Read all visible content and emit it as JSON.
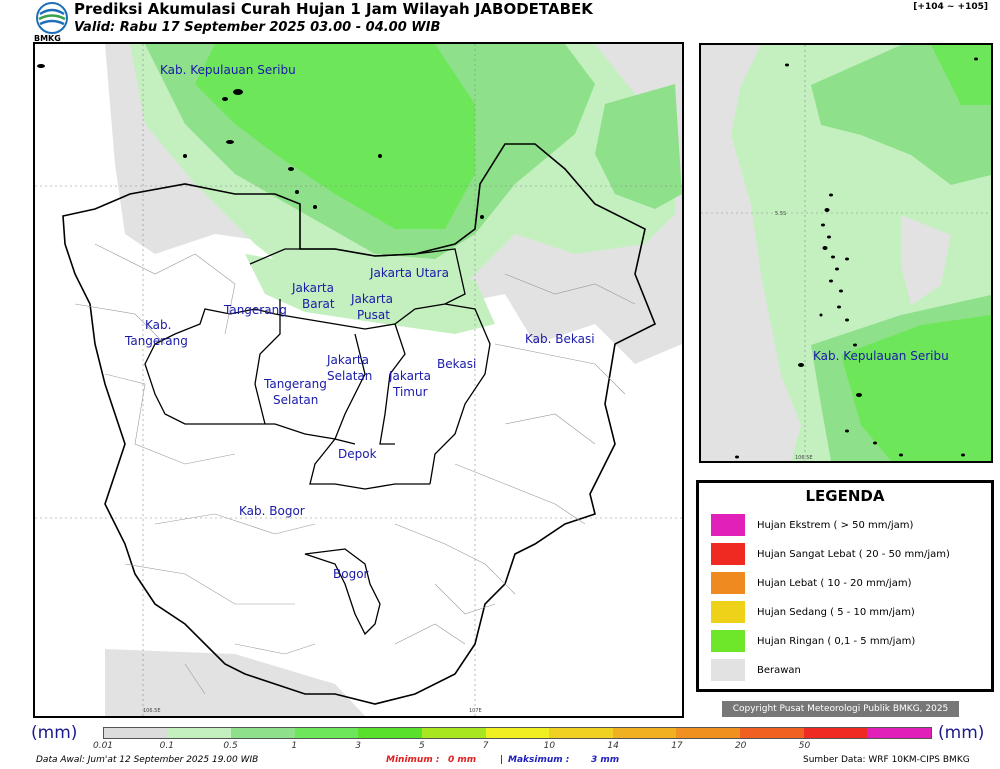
{
  "header": {
    "title": "Prediksi Akumulasi Curah Hujan 1 Jam Wilayah JABODETABEK",
    "subtitle": "Valid: Rabu 17 September 2025 03.00 - 04.00 WIB",
    "coords": "[+104 ~ +105]",
    "logo_text": "BMKG"
  },
  "main_map": {
    "labels": {
      "kep_seribu": "Kab. Kepulauan Seribu",
      "jakarta_utara": "Jakarta Utara",
      "jakarta_barat_1": "Jakarta",
      "jakarta_barat_2": "Barat",
      "jakarta_pusat_1": "Jakarta",
      "jakarta_pusat_2": "Pusat",
      "tangerang": "Tangerang",
      "kab_tangerang_1": "Kab.",
      "kab_tangerang_2": "Tangerang",
      "jakarta_selatan_1": "Jakarta",
      "jakarta_selatan_2": "Selatan",
      "jakarta_timur_1": "Jakarta",
      "jakarta_timur_2": "Timur",
      "bekasi": "Bekasi",
      "kab_bekasi": "Kab. Bekasi",
      "tangsel_1": "Tangerang",
      "tangsel_2": "Selatan",
      "depok": "Depok",
      "kab_bogor": "Kab. Bogor",
      "bogor": "Bogor"
    },
    "axis": {
      "lat_1": "6S",
      "lat_2": "6.5S",
      "lon_1": "106.5E",
      "lon_2": "107E"
    }
  },
  "inset_map": {
    "label": "Kab. Kepulauan Seribu",
    "axis": {
      "lat": "5.5S",
      "lon": "106.5E"
    }
  },
  "legend": {
    "title": "LEGENDA",
    "items": [
      {
        "label": "Hujan Ekstrem ( > 50 mm/jam)",
        "color": "#e020b8"
      },
      {
        "label": "Hujan Sangat Lebat ( 20 - 50 mm/jam)",
        "color": "#ee2a22"
      },
      {
        "label": "Hujan Lebat ( 10 - 20 mm/jam)",
        "color": "#ee8a20"
      },
      {
        "label": "Hujan Sedang ( 5 - 10 mm/jam)",
        "color": "#eed21a"
      },
      {
        "label": "Hujan Ringan ( 0,1 - 5 mm/jam)",
        "color": "#6ee62a"
      },
      {
        "label": "Berawan",
        "color": "#e2e2e2"
      }
    ]
  },
  "copyright": "Copyright Pusat Meteorologi Publik BMKG, 2025",
  "colorbar": {
    "unit": "(mm)",
    "ticks": [
      "0.01",
      "0.1",
      "0.5",
      "1",
      "3",
      "5",
      "7",
      "10",
      "14",
      "17",
      "20",
      "50"
    ],
    "colors": [
      "#dcdcdc",
      "#c4f0c0",
      "#8fe08a",
      "#6ee65a",
      "#58e02a",
      "#a8e620",
      "#f0f020",
      "#f0d020",
      "#f0b020",
      "#f09020",
      "#f06020",
      "#ee2a22",
      "#e020b8"
    ]
  },
  "footer": {
    "data_awal": "Data Awal: Jum'at 12 September 2025 19.00 WIB",
    "minimum_label": "Minimum :",
    "minimum_value": "0 mm",
    "separator": "|",
    "maksimum_label": "Maksimum :",
    "maksimum_value": "3 mm",
    "source": "Sumber Data: WRF 10KM-CIPS BMKG"
  },
  "colors": {
    "cloudy": "#e2e2e2",
    "light_green": "#c4f0c0",
    "mid_green": "#8fe08a",
    "bright_green": "#6ee65a",
    "label_blue": "#1a1aa8"
  }
}
